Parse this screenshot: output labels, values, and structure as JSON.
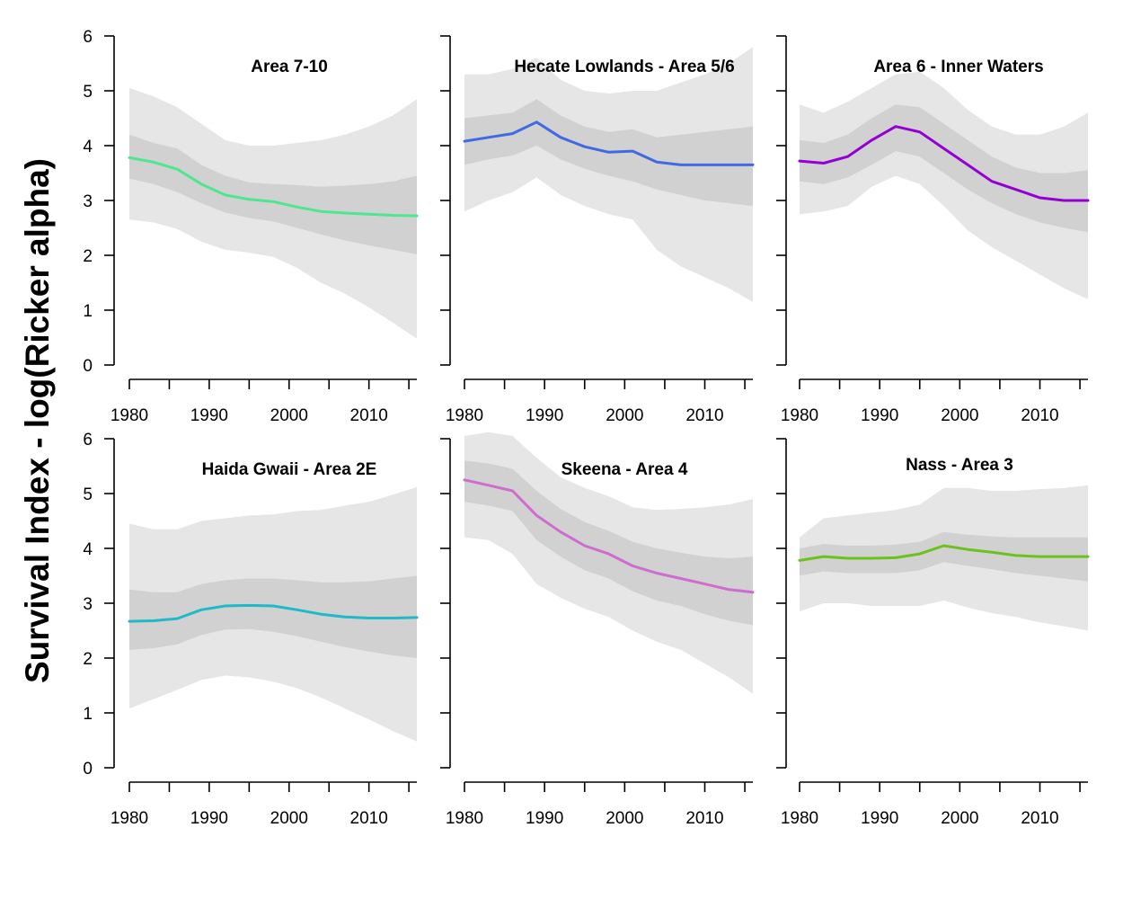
{
  "chart_data": {
    "type": "line",
    "ylabel": "Survival Index - log(Ricker alpha)",
    "x_ticks": [
      1980,
      1990,
      2000,
      2010
    ],
    "y_ticks": [
      0,
      1,
      2,
      3,
      4,
      5,
      6
    ],
    "ylim": [
      0,
      6
    ],
    "xlim": [
      1980,
      2016
    ],
    "grid": false,
    "panels": [
      {
        "title": "Area 7-10",
        "color": "#4ee68f",
        "y_tick_labels_shown": true,
        "x": [
          1980,
          1983,
          1986,
          1989,
          1992,
          1995,
          1998,
          2001,
          2004,
          2007,
          2010,
          2013,
          2016
        ],
        "median": [
          3.78,
          3.7,
          3.57,
          3.3,
          3.1,
          3.02,
          2.98,
          2.88,
          2.8,
          2.77,
          2.75,
          2.73,
          2.72
        ],
        "inner_lower": [
          3.4,
          3.3,
          3.15,
          2.95,
          2.78,
          2.68,
          2.62,
          2.5,
          2.38,
          2.27,
          2.18,
          2.1,
          2.02
        ],
        "inner_upper": [
          4.2,
          4.05,
          3.95,
          3.65,
          3.45,
          3.33,
          3.3,
          3.28,
          3.25,
          3.27,
          3.3,
          3.35,
          3.45
        ],
        "outer_lower": [
          2.65,
          2.6,
          2.48,
          2.25,
          2.1,
          2.05,
          1.97,
          1.77,
          1.5,
          1.3,
          1.05,
          0.77,
          0.48
        ],
        "outer_upper": [
          5.05,
          4.9,
          4.7,
          4.4,
          4.1,
          4.0,
          4.0,
          4.05,
          4.1,
          4.2,
          4.35,
          4.55,
          4.85
        ]
      },
      {
        "title": "Hecate Lowlands - Area 5/6",
        "color": "#4169e1",
        "y_tick_labels_shown": false,
        "x": [
          1980,
          1983,
          1986,
          1989,
          1992,
          1995,
          1998,
          2001,
          2004,
          2007,
          2010,
          2013,
          2016
        ],
        "median": [
          4.08,
          4.15,
          4.22,
          4.43,
          4.15,
          3.98,
          3.88,
          3.9,
          3.7,
          3.65,
          3.65,
          3.65,
          3.65
        ],
        "inner_lower": [
          3.65,
          3.75,
          3.82,
          4.0,
          3.75,
          3.58,
          3.45,
          3.35,
          3.2,
          3.1,
          3.0,
          2.95,
          2.9
        ],
        "inner_upper": [
          4.5,
          4.55,
          4.6,
          4.85,
          4.55,
          4.35,
          4.25,
          4.3,
          4.15,
          4.2,
          4.25,
          4.3,
          4.35
        ],
        "outer_lower": [
          2.8,
          3.0,
          3.15,
          3.42,
          3.1,
          2.9,
          2.75,
          2.65,
          2.1,
          1.8,
          1.6,
          1.4,
          1.15
        ],
        "outer_upper": [
          5.3,
          5.3,
          5.4,
          5.6,
          5.2,
          5.0,
          4.95,
          5.0,
          5.0,
          5.15,
          5.3,
          5.5,
          5.8
        ]
      },
      {
        "title": "Area 6 - Inner Waters",
        "color": "#9400d3",
        "y_tick_labels_shown": false,
        "x": [
          1980,
          1983,
          1986,
          1989,
          1992,
          1995,
          1998,
          2001,
          2004,
          2007,
          2010,
          2013,
          2016
        ],
        "median": [
          3.72,
          3.68,
          3.8,
          4.1,
          4.35,
          4.25,
          3.95,
          3.65,
          3.35,
          3.2,
          3.05,
          3.0,
          3.0
        ],
        "inner_lower": [
          3.35,
          3.3,
          3.42,
          3.65,
          3.9,
          3.8,
          3.5,
          3.2,
          2.95,
          2.75,
          2.6,
          2.5,
          2.42
        ],
        "inner_upper": [
          4.1,
          4.05,
          4.2,
          4.5,
          4.75,
          4.7,
          4.4,
          4.1,
          3.8,
          3.6,
          3.5,
          3.5,
          3.55
        ],
        "outer_lower": [
          2.75,
          2.8,
          2.9,
          3.25,
          3.45,
          3.3,
          2.9,
          2.45,
          2.15,
          1.9,
          1.65,
          1.4,
          1.2
        ],
        "outer_upper": [
          4.75,
          4.6,
          4.8,
          5.05,
          5.3,
          5.35,
          5.05,
          4.65,
          4.35,
          4.2,
          4.2,
          4.35,
          4.6
        ]
      },
      {
        "title": "Haida Gwaii - Area 2E",
        "color": "#1fb9c9",
        "y_tick_labels_shown": true,
        "x": [
          1980,
          1983,
          1986,
          1989,
          1992,
          1995,
          1998,
          2001,
          2004,
          2007,
          2010,
          2013,
          2016
        ],
        "median": [
          2.67,
          2.68,
          2.72,
          2.88,
          2.95,
          2.96,
          2.95,
          2.88,
          2.8,
          2.75,
          2.73,
          2.73,
          2.74
        ],
        "inner_lower": [
          2.15,
          2.18,
          2.25,
          2.42,
          2.52,
          2.53,
          2.48,
          2.4,
          2.3,
          2.2,
          2.12,
          2.05,
          2.0
        ],
        "inner_upper": [
          3.25,
          3.2,
          3.2,
          3.35,
          3.42,
          3.45,
          3.45,
          3.42,
          3.38,
          3.38,
          3.4,
          3.45,
          3.5
        ],
        "outer_lower": [
          1.08,
          1.25,
          1.42,
          1.6,
          1.68,
          1.65,
          1.57,
          1.45,
          1.28,
          1.08,
          0.88,
          0.67,
          0.48
        ],
        "outer_upper": [
          4.45,
          4.35,
          4.35,
          4.5,
          4.55,
          4.6,
          4.62,
          4.68,
          4.7,
          4.78,
          4.85,
          4.98,
          5.12
        ]
      },
      {
        "title": "Skeena - Area 4",
        "color": "#d06bd0",
        "y_tick_labels_shown": false,
        "x": [
          1980,
          1983,
          1986,
          1989,
          1992,
          1995,
          1998,
          2001,
          2004,
          2007,
          2010,
          2013,
          2016
        ],
        "median": [
          5.25,
          5.15,
          5.05,
          4.6,
          4.3,
          4.05,
          3.9,
          3.68,
          3.55,
          3.45,
          3.35,
          3.25,
          3.2
        ],
        "inner_lower": [
          4.85,
          4.78,
          4.68,
          4.15,
          3.85,
          3.6,
          3.45,
          3.22,
          3.05,
          2.95,
          2.8,
          2.68,
          2.6
        ],
        "inner_upper": [
          5.6,
          5.55,
          5.45,
          5.05,
          4.72,
          4.48,
          4.32,
          4.12,
          4.0,
          3.92,
          3.85,
          3.82,
          3.85
        ],
        "outer_lower": [
          4.2,
          4.15,
          3.9,
          3.35,
          3.1,
          2.9,
          2.75,
          2.5,
          2.3,
          2.15,
          1.9,
          1.65,
          1.35
        ],
        "outer_upper": [
          6.05,
          6.12,
          6.05,
          5.65,
          5.3,
          5.1,
          4.95,
          4.75,
          4.7,
          4.72,
          4.75,
          4.8,
          4.9
        ]
      },
      {
        "title": "Nass - Area 3",
        "color": "#6cc21c",
        "y_tick_labels_shown": false,
        "x": [
          1980,
          1983,
          1986,
          1989,
          1992,
          1995,
          1998,
          2001,
          2004,
          2007,
          2010,
          2013,
          2016
        ],
        "median": [
          3.78,
          3.85,
          3.82,
          3.82,
          3.83,
          3.9,
          4.05,
          3.98,
          3.93,
          3.87,
          3.85,
          3.85,
          3.85
        ],
        "inner_lower": [
          3.5,
          3.58,
          3.55,
          3.55,
          3.55,
          3.6,
          3.75,
          3.68,
          3.62,
          3.55,
          3.5,
          3.45,
          3.4
        ],
        "inner_upper": [
          4.0,
          4.08,
          4.05,
          4.05,
          4.07,
          4.12,
          4.3,
          4.25,
          4.22,
          4.2,
          4.2,
          4.2,
          4.2
        ],
        "outer_lower": [
          2.85,
          3.0,
          3.0,
          2.95,
          2.95,
          2.95,
          3.05,
          2.92,
          2.82,
          2.75,
          2.65,
          2.58,
          2.5
        ],
        "outer_upper": [
          4.2,
          4.55,
          4.6,
          4.65,
          4.7,
          4.8,
          5.1,
          5.1,
          5.05,
          5.05,
          5.08,
          5.1,
          5.15
        ]
      }
    ]
  }
}
